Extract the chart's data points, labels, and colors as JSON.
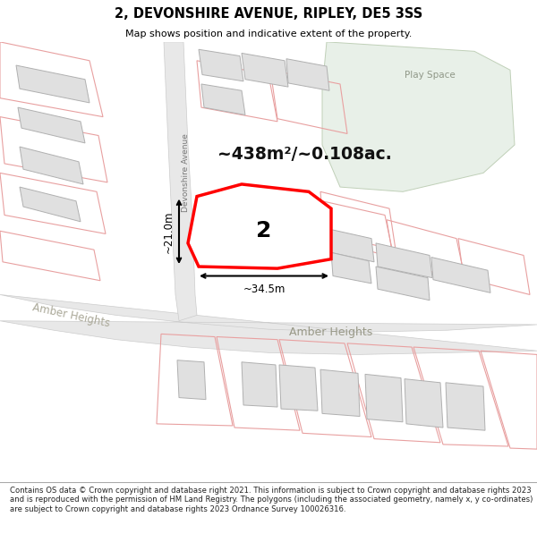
{
  "title": "2, DEVONSHIRE AVENUE, RIPLEY, DE5 3SS",
  "subtitle": "Map shows position and indicative extent of the property.",
  "footnote": "Contains OS data © Crown copyright and database right 2021. This information is subject to Crown copyright and database rights 2023 and is reproduced with the permission of HM Land Registry. The polygons (including the associated geometry, namely x, y co-ordinates) are subject to Crown copyright and database rights 2023 Ordnance Survey 100026316.",
  "bg_color": "#f7f7f7",
  "road_fill": "#e8e8e8",
  "road_edge": "#cccccc",
  "building_fill": "#e0e0e0",
  "building_edge": "#b0b0b0",
  "highlight_fill": "#ffffff",
  "highlight_edge": "#ff0000",
  "green_fill": "#e8f0e8",
  "green_edge": "#c0d0b8",
  "lot_edge": "#e8a0a0",
  "area_text": "~438m²/~0.108ac.",
  "dim_width": "~34.5m",
  "dim_height": "~21.0m",
  "number_label": "2",
  "street_devonshire": "Devonshire Avenue",
  "street_amber": "Amber Heights",
  "street_amber_left": "Amber Heights",
  "play_space": "Play Space"
}
